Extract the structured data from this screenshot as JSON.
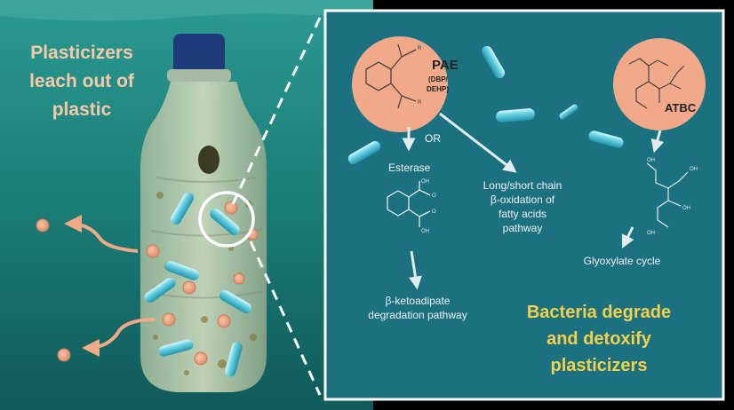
{
  "left_panel": {
    "heading_lines": [
      "Plasticizers",
      "leach out of",
      "plastic"
    ]
  },
  "right_panel": {
    "pae": {
      "label": "PAE",
      "sub1": "(DBP/",
      "sub2": "DEHP)"
    },
    "atbc": {
      "label": "ATBC"
    },
    "or_label": "OR",
    "esterase_label": "Esterase",
    "beta_oxidation_lines": [
      "Long/short chain",
      "β-oxidation of",
      "fatty acids",
      "pathway"
    ],
    "ketoadipate_lines": [
      "β-ketoadipate",
      "degradation pathway"
    ],
    "glyoxylate_label": "Glyoxylate cycle",
    "conclusion_lines": [
      "Bacteria degrade",
      "and detoxify",
      "plasticizers"
    ],
    "atom_labels": {
      "oh": "OH",
      "o": "O",
      "r": "R"
    }
  },
  "colors": {
    "water": "#1f8a86",
    "panel": "#1a6f7c",
    "circle": "#f0a77e",
    "bacteria": "#5ccfe0",
    "arrow": "#e0ecec",
    "conclusion": "#f2d14a",
    "particle": "#f0a98a"
  }
}
